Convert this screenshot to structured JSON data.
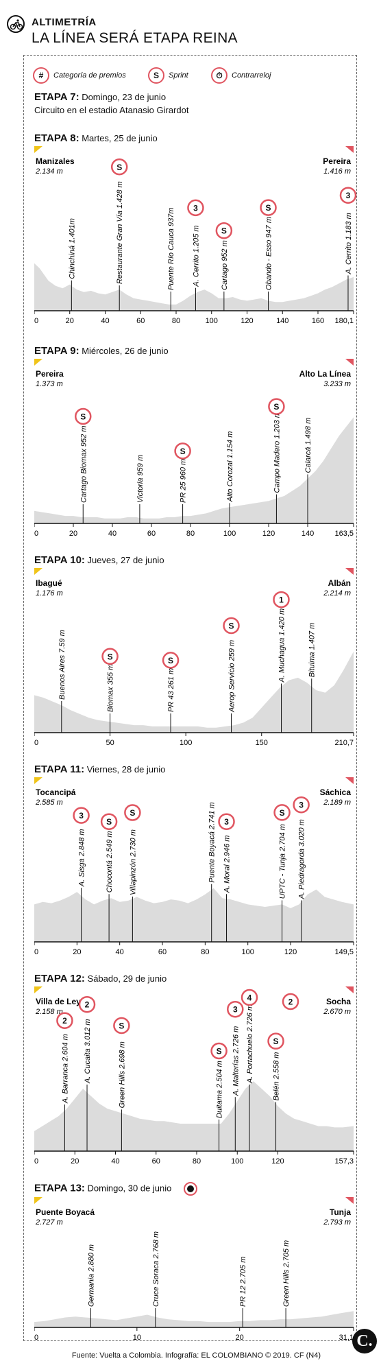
{
  "header": {
    "section": "ALTIMETRÍA",
    "title": "LA LÍNEA SERÁ ETAPA REINA",
    "icon": "cyclist-icon"
  },
  "legend": [
    {
      "symbol": "#",
      "label": "Categoría de premios"
    },
    {
      "symbol": "S",
      "label": "Sprint"
    },
    {
      "symbol": "⏱",
      "label": "Contrarreloj",
      "icon": "stopwatch-icon"
    }
  ],
  "stage7": {
    "label": "ETAPA 7:",
    "date": "Domingo, 23 de junio",
    "desc": "Circuito en el estadio Atanasio Girardot"
  },
  "footer": {
    "credit": "Fuente: Vuelta a Colombia. Infografía: EL COLOMBIANO © 2019. CF (N4)",
    "logo": "C."
  },
  "colors": {
    "profile": "#dcdcdc",
    "badge": "#e05560"
  },
  "chart_data": [
    {
      "type": "area",
      "stage": "ETAPA 8:",
      "date": "Martes, 25 de junio",
      "start": {
        "name": "Manizales",
        "alt": "2.134 m"
      },
      "finish": {
        "name": "Pereira",
        "alt": "1.416 m"
      },
      "x_ticks": [
        "0",
        "20",
        "40",
        "60",
        "80",
        "100",
        "120",
        "140",
        "160",
        "180,1"
      ],
      "x_max": 180.1,
      "profile_km": [
        0,
        3,
        8,
        12,
        16,
        20,
        24,
        28,
        32,
        36,
        40,
        44,
        48,
        52,
        56,
        60,
        64,
        68,
        72,
        76,
        80,
        84,
        88,
        92,
        96,
        100,
        104,
        108,
        112,
        116,
        120,
        124,
        128,
        132,
        136,
        140,
        144,
        148,
        152,
        156,
        160,
        164,
        168,
        172,
        176,
        180.1
      ],
      "profile_level": [
        0.38,
        0.34,
        0.24,
        0.2,
        0.18,
        0.21,
        0.17,
        0.15,
        0.16,
        0.14,
        0.13,
        0.15,
        0.17,
        0.13,
        0.1,
        0.09,
        0.08,
        0.07,
        0.06,
        0.05,
        0.05,
        0.08,
        0.12,
        0.15,
        0.17,
        0.14,
        0.1,
        0.1,
        0.11,
        0.09,
        0.08,
        0.09,
        0.1,
        0.08,
        0.07,
        0.07,
        0.08,
        0.09,
        0.1,
        0.12,
        0.14,
        0.17,
        0.19,
        0.22,
        0.25,
        0.27
      ],
      "points": [
        {
          "km": 21,
          "label": "Chinchiná 1.401m"
        },
        {
          "km": 48,
          "label": "Restaurante Gran Vía 1.428 m",
          "badge": "S"
        },
        {
          "km": 77,
          "label": "Puente Río Cauca 937m"
        },
        {
          "km": 91,
          "label": "A. Cerrito 1.205 m",
          "badge": "3"
        },
        {
          "km": 107,
          "label": "Cartago 952 m",
          "badge": "S"
        },
        {
          "km": 132,
          "label": "Obando - Esso 947 m",
          "badge": "S"
        },
        {
          "km": 177,
          "label": "A. Cerrito 1.183 m",
          "badge": "3"
        }
      ]
    },
    {
      "type": "area",
      "stage": "ETAPA 9:",
      "date": "Miércoles, 26 de junio",
      "start": {
        "name": "Pereira",
        "alt": "1.373 m"
      },
      "finish": {
        "name": "Alto La Línea",
        "alt": "3.233 m"
      },
      "x_ticks": [
        "0",
        "20",
        "40",
        "60",
        "80",
        "100",
        "120",
        "140",
        "163,5"
      ],
      "x_max": 163.5,
      "profile_km": [
        0,
        4,
        8,
        12,
        16,
        20,
        24,
        28,
        32,
        36,
        40,
        44,
        48,
        52,
        56,
        60,
        64,
        68,
        72,
        76,
        80,
        84,
        88,
        92,
        96,
        100,
        104,
        108,
        112,
        116,
        120,
        124,
        128,
        132,
        136,
        140,
        144,
        148,
        152,
        156,
        160,
        163.5
      ],
      "profile_level": [
        0.1,
        0.09,
        0.08,
        0.07,
        0.06,
        0.06,
        0.05,
        0.05,
        0.05,
        0.04,
        0.04,
        0.04,
        0.05,
        0.05,
        0.04,
        0.04,
        0.04,
        0.05,
        0.05,
        0.06,
        0.06,
        0.07,
        0.08,
        0.1,
        0.12,
        0.13,
        0.14,
        0.15,
        0.16,
        0.17,
        0.18,
        0.2,
        0.22,
        0.26,
        0.3,
        0.36,
        0.42,
        0.5,
        0.6,
        0.7,
        0.78,
        0.85
      ],
      "points": [
        {
          "km": 25,
          "label": "Cartago Biomax 952 m",
          "badge": "S"
        },
        {
          "km": 54,
          "label": "Victoria 959 m"
        },
        {
          "km": 76,
          "label": "PR 25 960 m",
          "badge": "S"
        },
        {
          "km": 100,
          "label": "Alto Corozal 1.154 m"
        },
        {
          "km": 124,
          "label": "Campo Madero 1.203 m",
          "badge": "S"
        },
        {
          "km": 140,
          "label": "Calarcá 1.498 m"
        }
      ]
    },
    {
      "type": "area",
      "stage": "ETAPA 10:",
      "date": "Jueves, 27 de junio",
      "start": {
        "name": "Ibagué",
        "alt": "1.176 m"
      },
      "finish": {
        "name": "Albán",
        "alt": "2.214 m"
      },
      "x_ticks": [
        "0",
        "50",
        "100",
        "150",
        "210,7"
      ],
      "x_max": 210.7,
      "profile_km": [
        0,
        6,
        12,
        18,
        24,
        30,
        36,
        42,
        48,
        54,
        60,
        66,
        72,
        78,
        84,
        90,
        96,
        102,
        108,
        114,
        120,
        126,
        132,
        138,
        144,
        150,
        156,
        162,
        168,
        174,
        180,
        186,
        192,
        198,
        204,
        210.7
      ],
      "profile_level": [
        0.3,
        0.28,
        0.25,
        0.22,
        0.18,
        0.15,
        0.12,
        0.1,
        0.09,
        0.08,
        0.07,
        0.06,
        0.06,
        0.05,
        0.05,
        0.05,
        0.05,
        0.05,
        0.05,
        0.04,
        0.04,
        0.05,
        0.06,
        0.08,
        0.12,
        0.2,
        0.28,
        0.36,
        0.42,
        0.44,
        0.4,
        0.34,
        0.32,
        0.38,
        0.5,
        0.65
      ],
      "points": [
        {
          "km": 18,
          "label": "Buenos Aires 7.59 m"
        },
        {
          "km": 50,
          "label": "Biomax 355 m",
          "badge": "S"
        },
        {
          "km": 90,
          "label": "PR 43 261 m",
          "badge": "S"
        },
        {
          "km": 130,
          "label": "Aerop Servicio 259 m",
          "badge": "S"
        },
        {
          "km": 163,
          "label": "A. Muchagua 1.420 m",
          "badge": "1"
        },
        {
          "km": 183,
          "label": "Bituima 1.407 m"
        }
      ]
    },
    {
      "type": "area",
      "stage": "ETAPA 11:",
      "date": "Viernes, 28 de junio",
      "start": {
        "name": "Tocancipá",
        "alt": "2.585 m"
      },
      "finish": {
        "name": "Sáchica",
        "alt": "2.189 m"
      },
      "x_ticks": [
        "0",
        "20",
        "40",
        "60",
        "80",
        "100",
        "120",
        "149,5"
      ],
      "x_max": 149.5,
      "profile_km": [
        0,
        4,
        8,
        12,
        16,
        20,
        24,
        28,
        32,
        36,
        40,
        44,
        48,
        52,
        56,
        60,
        64,
        68,
        72,
        76,
        80,
        84,
        88,
        92,
        96,
        100,
        104,
        108,
        112,
        116,
        120,
        124,
        128,
        132,
        136,
        140,
        144,
        149.5
      ],
      "profile_level": [
        0.3,
        0.32,
        0.31,
        0.33,
        0.36,
        0.4,
        0.34,
        0.3,
        0.33,
        0.35,
        0.32,
        0.33,
        0.36,
        0.33,
        0.31,
        0.32,
        0.34,
        0.33,
        0.31,
        0.34,
        0.38,
        0.43,
        0.35,
        0.34,
        0.32,
        0.3,
        0.29,
        0.28,
        0.29,
        0.3,
        0.27,
        0.3,
        0.38,
        0.42,
        0.36,
        0.34,
        0.32,
        0.3
      ],
      "points": [
        {
          "km": 22,
          "label": "A. Sisga 2.848 m",
          "badge": "3"
        },
        {
          "km": 35,
          "label": "Chocontá 2.549 m",
          "badge": "S"
        },
        {
          "km": 46,
          "label": "Villapinzón 2.730 m",
          "badge": "S"
        },
        {
          "km": 83,
          "label": "Puente Boyacá 2.741 m"
        },
        {
          "km": 90,
          "label": "A. Moral 2.946 m",
          "badge": "3"
        },
        {
          "km": 116,
          "label": "UPTC - Tunja 2.704 m",
          "badge": "S"
        },
        {
          "km": 125,
          "label": "A. Piedragorda 3.020 m",
          "badge": "3"
        }
      ]
    },
    {
      "type": "area",
      "stage": "ETAPA 12:",
      "date": "Sábado, 29 de junio",
      "start": {
        "name": "Villa de Leyva",
        "alt": "2.158 m"
      },
      "finish": {
        "name": "Socha",
        "alt": "2.670 m",
        "badge": "2"
      },
      "x_ticks": [
        "0",
        "20",
        "40",
        "60",
        "80",
        "100",
        "120",
        "157,3"
      ],
      "x_max": 157.3,
      "profile_km": [
        0,
        4,
        8,
        12,
        16,
        20,
        24,
        28,
        32,
        36,
        40,
        44,
        48,
        52,
        56,
        60,
        64,
        68,
        72,
        76,
        80,
        84,
        88,
        92,
        96,
        100,
        104,
        108,
        112,
        116,
        120,
        124,
        128,
        132,
        136,
        140,
        144,
        148,
        152,
        157.3
      ],
      "profile_level": [
        0.16,
        0.2,
        0.24,
        0.28,
        0.34,
        0.42,
        0.5,
        0.44,
        0.38,
        0.34,
        0.32,
        0.3,
        0.28,
        0.26,
        0.25,
        0.24,
        0.24,
        0.23,
        0.22,
        0.22,
        0.22,
        0.22,
        0.22,
        0.22,
        0.3,
        0.4,
        0.5,
        0.56,
        0.5,
        0.44,
        0.36,
        0.3,
        0.26,
        0.24,
        0.22,
        0.2,
        0.2,
        0.19,
        0.19,
        0.2
      ],
      "points": [
        {
          "km": 15,
          "label": "A. Barranca 2.604 m",
          "badge": "2"
        },
        {
          "km": 26,
          "label": "A. Cucaita 3.012 m",
          "badge": "2"
        },
        {
          "km": 43,
          "label": "Green Hills 2.698 m",
          "badge": "S"
        },
        {
          "km": 91,
          "label": "Duitama 2.504 m",
          "badge": "S"
        },
        {
          "km": 99,
          "label": "A. Malterías 2.726 m",
          "badge": "3"
        },
        {
          "km": 106,
          "label": "A. Portachuelo 2.726 m",
          "badge": "4"
        },
        {
          "km": 119,
          "label": "Belén 2.558 m",
          "badge": "S"
        }
      ]
    },
    {
      "type": "area",
      "stage": "ETAPA 13:",
      "date": "Domingo, 30 de junio",
      "icon": "stopwatch-icon",
      "start": {
        "name": "Puente Boyacá",
        "alt": "2.727 m"
      },
      "finish": {
        "name": "Tunja",
        "alt": "2.793 m"
      },
      "x_ticks": [
        "0",
        "10",
        "20",
        "31,1"
      ],
      "x_max": 31.1,
      "profile_km": [
        0,
        1,
        2,
        3,
        4,
        5,
        6,
        7,
        8,
        9,
        10,
        11,
        12,
        13,
        14,
        15,
        16,
        17,
        18,
        19,
        20,
        21,
        22,
        23,
        24,
        25,
        26,
        27,
        28,
        29,
        30,
        31.1
      ],
      "profile_level": [
        0.06,
        0.07,
        0.09,
        0.11,
        0.12,
        0.11,
        0.1,
        0.09,
        0.08,
        0.1,
        0.12,
        0.14,
        0.11,
        0.09,
        0.08,
        0.07,
        0.07,
        0.06,
        0.06,
        0.06,
        0.07,
        0.07,
        0.08,
        0.08,
        0.09,
        0.09,
        0.1,
        0.11,
        0.12,
        0.14,
        0.16,
        0.18
      ],
      "points": [
        {
          "km": 5.5,
          "label": "Germania 2.880 m"
        },
        {
          "km": 11.8,
          "label": "Cruce Soraca 2.768 m"
        },
        {
          "km": 20.3,
          "label": "PR 12 2.705 m"
        },
        {
          "km": 24.5,
          "label": "Green Hills 2.705 m"
        }
      ]
    }
  ]
}
